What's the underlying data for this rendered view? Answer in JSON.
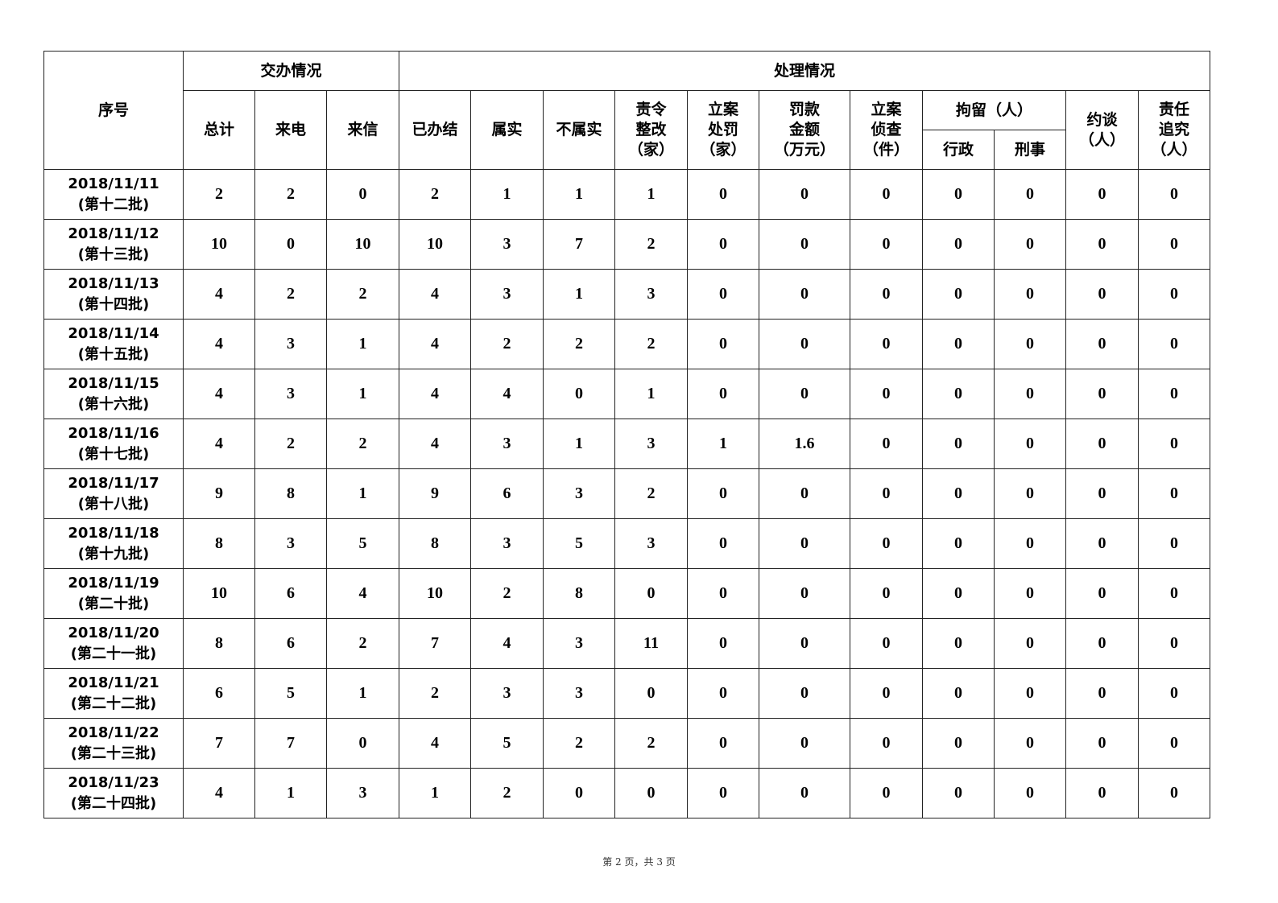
{
  "headers": {
    "seq": "序号",
    "assign_group": "交办情况",
    "handle_group": "处理情况",
    "total": "总计",
    "phone": "来电",
    "letter": "来信",
    "closed": "已办结",
    "true": "属实",
    "not_true": "不属实",
    "rectify": "责令\n整改\n（家）",
    "penalty": "立案\n处罚\n（家）",
    "fine": "罚款\n金额\n（万元）",
    "investigate": "立案\n侦查\n（件）",
    "detain_group": "拘留（人）",
    "admin": "行政",
    "criminal": "刑事",
    "interview": "约谈\n（人）",
    "accountability": "责任\n追究\n（人）"
  },
  "rows": [
    {
      "date": "2018/11/11",
      "batch": "(第十二批)",
      "values": [
        "2",
        "2",
        "0",
        "2",
        "1",
        "1",
        "1",
        "0",
        "0",
        "0",
        "0",
        "0",
        "0",
        "0"
      ]
    },
    {
      "date": "2018/11/12",
      "batch": "(第十三批)",
      "values": [
        "10",
        "0",
        "10",
        "10",
        "3",
        "7",
        "2",
        "0",
        "0",
        "0",
        "0",
        "0",
        "0",
        "0"
      ]
    },
    {
      "date": "2018/11/13",
      "batch": "(第十四批)",
      "values": [
        "4",
        "2",
        "2",
        "4",
        "3",
        "1",
        "3",
        "0",
        "0",
        "0",
        "0",
        "0",
        "0",
        "0"
      ]
    },
    {
      "date": "2018/11/14",
      "batch": "(第十五批)",
      "values": [
        "4",
        "3",
        "1",
        "4",
        "2",
        "2",
        "2",
        "0",
        "0",
        "0",
        "0",
        "0",
        "0",
        "0"
      ]
    },
    {
      "date": "2018/11/15",
      "batch": "(第十六批)",
      "values": [
        "4",
        "3",
        "1",
        "4",
        "4",
        "0",
        "1",
        "0",
        "0",
        "0",
        "0",
        "0",
        "0",
        "0"
      ]
    },
    {
      "date": "2018/11/16",
      "batch": "(第十七批)",
      "values": [
        "4",
        "2",
        "2",
        "4",
        "3",
        "1",
        "3",
        "1",
        "1.6",
        "0",
        "0",
        "0",
        "0",
        "0"
      ]
    },
    {
      "date": "2018/11/17",
      "batch": "(第十八批)",
      "values": [
        "9",
        "8",
        "1",
        "9",
        "6",
        "3",
        "2",
        "0",
        "0",
        "0",
        "0",
        "0",
        "0",
        "0"
      ]
    },
    {
      "date": "2018/11/18",
      "batch": "(第十九批)",
      "values": [
        "8",
        "3",
        "5",
        "8",
        "3",
        "5",
        "3",
        "0",
        "0",
        "0",
        "0",
        "0",
        "0",
        "0"
      ]
    },
    {
      "date": "2018/11/19",
      "batch": "(第二十批)",
      "values": [
        "10",
        "6",
        "4",
        "10",
        "2",
        "8",
        "0",
        "0",
        "0",
        "0",
        "0",
        "0",
        "0",
        "0"
      ]
    },
    {
      "date": "2018/11/20",
      "batch": "(第二十一批)",
      "values": [
        "8",
        "6",
        "2",
        "7",
        "4",
        "3",
        "11",
        "0",
        "0",
        "0",
        "0",
        "0",
        "0",
        "0"
      ]
    },
    {
      "date": "2018/11/21",
      "batch": "(第二十二批)",
      "values": [
        "6",
        "5",
        "1",
        "2",
        "3",
        "3",
        "0",
        "0",
        "0",
        "0",
        "0",
        "0",
        "0",
        "0"
      ]
    },
    {
      "date": "2018/11/22",
      "batch": "(第二十三批)",
      "values": [
        "7",
        "7",
        "0",
        "4",
        "5",
        "2",
        "2",
        "0",
        "0",
        "0",
        "0",
        "0",
        "0",
        "0"
      ]
    },
    {
      "date": "2018/11/23",
      "batch": "(第二十四批)",
      "values": [
        "4",
        "1",
        "3",
        "1",
        "2",
        "0",
        "0",
        "0",
        "0",
        "0",
        "0",
        "0",
        "0",
        "0"
      ]
    }
  ],
  "footer": "第 2 页，共 3 页"
}
